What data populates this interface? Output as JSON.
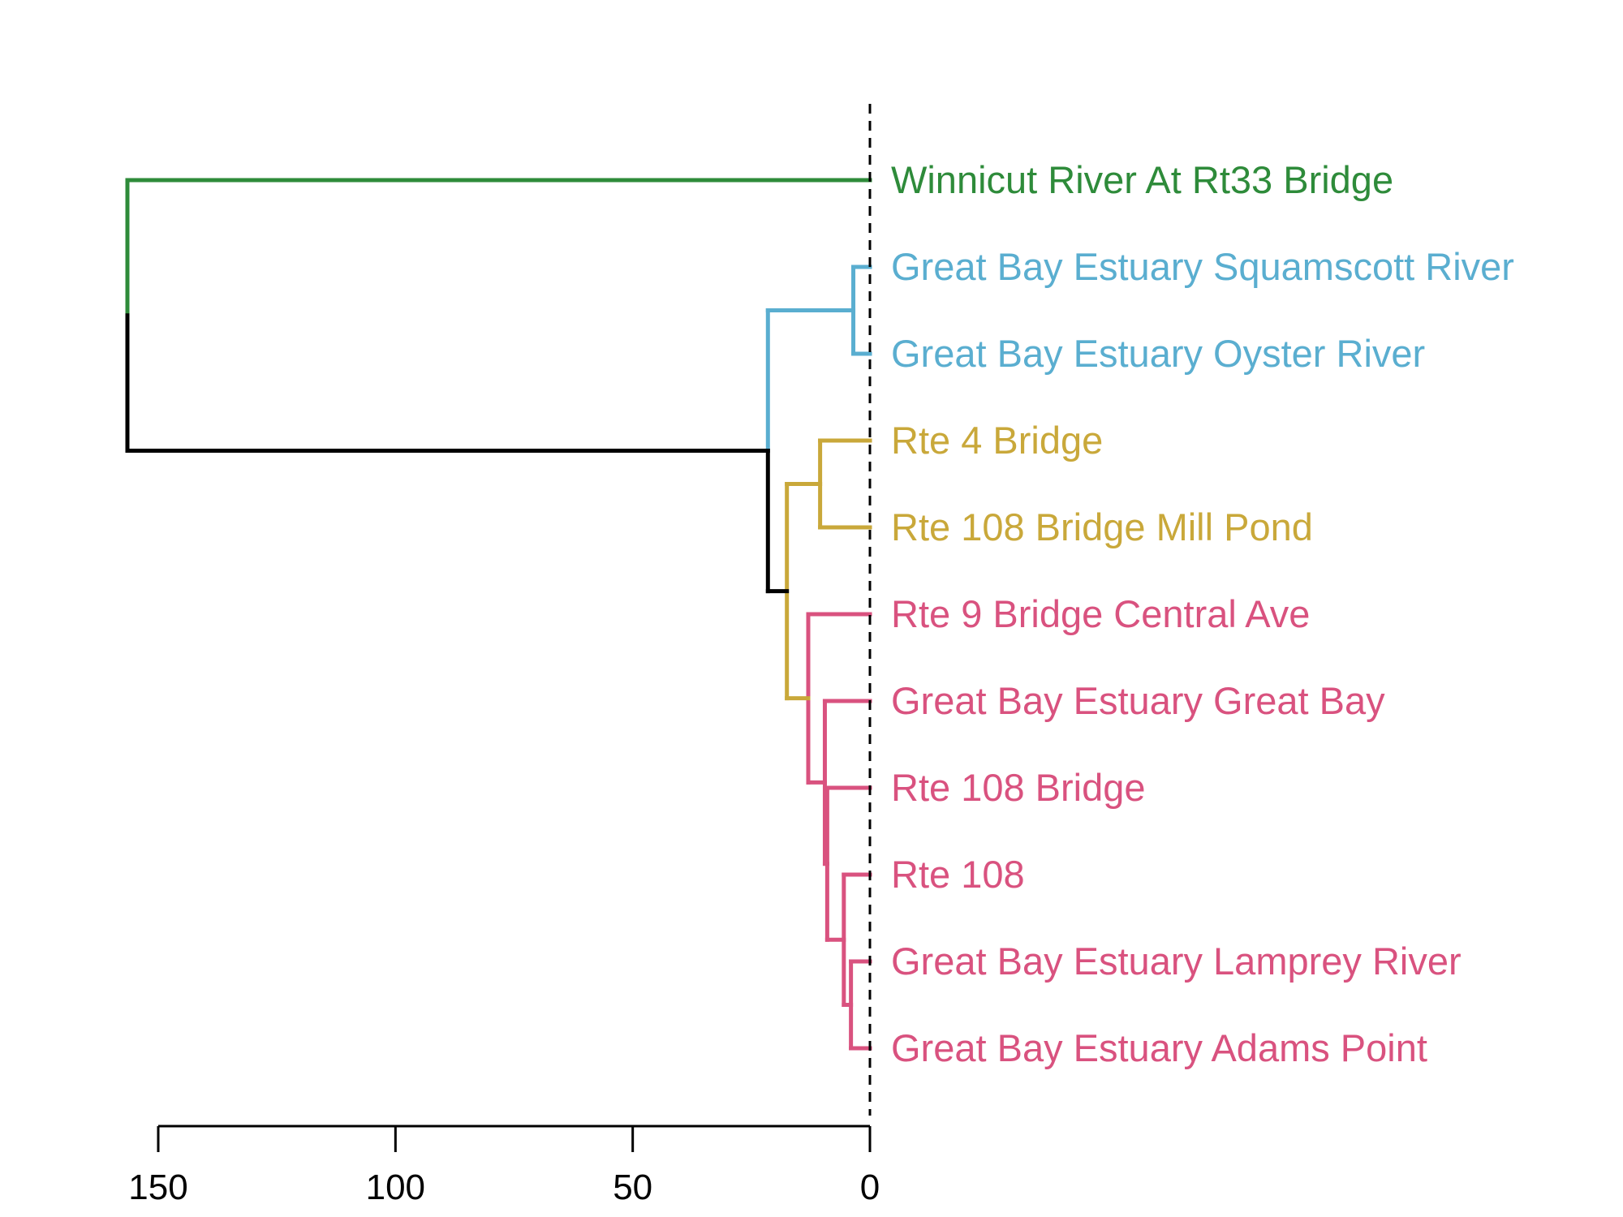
{
  "chart_data": {
    "type": "dendrogram",
    "orientation": "horizontal-leaves-right",
    "x_axis": {
      "ticks": [
        150,
        100,
        50,
        0
      ],
      "xlim": [
        150,
        0
      ]
    },
    "reference_line": {
      "x": 0,
      "style": "dashed"
    },
    "colors": {
      "green": "#2e8b3a",
      "blue": "#5aaed0",
      "gold": "#c9a83a",
      "pink": "#d9527f",
      "black": "#000000"
    },
    "leaves": [
      {
        "label": "Winnicut River At Rt33 Bridge",
        "color": "green"
      },
      {
        "label": "Great Bay Estuary Squamscott River",
        "color": "blue"
      },
      {
        "label": "Great Bay Estuary Oyster River",
        "color": "blue"
      },
      {
        "label": "Rte 4 Bridge",
        "color": "gold"
      },
      {
        "label": "Rte 108 Bridge Mill Pond",
        "color": "gold"
      },
      {
        "label": "Rte 9 Bridge Central Ave",
        "color": "pink"
      },
      {
        "label": "Great Bay Estuary Great Bay",
        "color": "pink"
      },
      {
        "label": "Rte 108 Bridge",
        "color": "pink"
      },
      {
        "label": "Rte 108",
        "color": "pink"
      },
      {
        "label": "Great Bay Estuary Lamprey River",
        "color": "pink"
      },
      {
        "label": "Great Bay Estuary Adams Point",
        "color": "pink"
      }
    ],
    "merges": [
      {
        "id": "m1",
        "children": [
          "L9",
          "L10"
        ],
        "height": 4,
        "color": "pink"
      },
      {
        "id": "m2",
        "children": [
          "L8",
          "m1"
        ],
        "height": 5.5,
        "color": "pink"
      },
      {
        "id": "m3",
        "children": [
          "L7",
          "m2"
        ],
        "height": 9,
        "color": "pink"
      },
      {
        "id": "m4",
        "children": [
          "L6",
          "m3"
        ],
        "height": 9.5,
        "color": "pink"
      },
      {
        "id": "m5",
        "children": [
          "L5",
          "m4"
        ],
        "height": 13,
        "color": "pink"
      },
      {
        "id": "m6",
        "children": [
          "L3",
          "L4"
        ],
        "height": 10.5,
        "color": "gold"
      },
      {
        "id": "m7",
        "children": [
          "m6",
          "m5"
        ],
        "height": 17.5,
        "color": "gold"
      },
      {
        "id": "m8",
        "children": [
          "L1",
          "L2"
        ],
        "height": 3.5,
        "color": "blue"
      },
      {
        "id": "m9",
        "children": [
          "m8",
          "m7"
        ],
        "height": 21.5,
        "color": "blue"
      },
      {
        "id": "m10",
        "children": [
          "L0",
          "m9"
        ],
        "height": 156.5,
        "color": "green"
      }
    ]
  }
}
